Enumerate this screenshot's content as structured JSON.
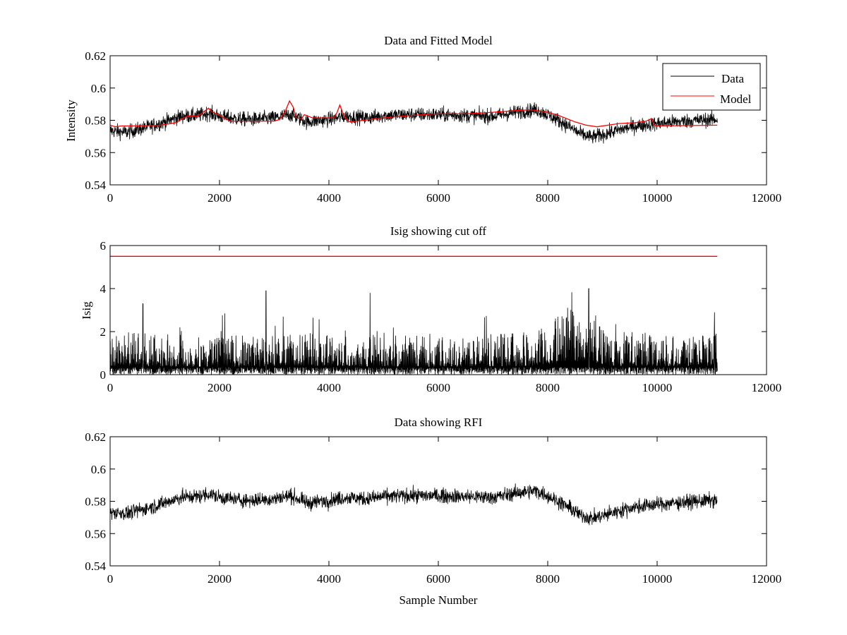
{
  "chart_data": [
    {
      "type": "line",
      "title": "Data and Fitted Model",
      "xlabel": "",
      "ylabel": "Intensity",
      "xlim": [
        0,
        12000
      ],
      "ylim": [
        0.54,
        0.62
      ],
      "xticks": [
        0,
        2000,
        4000,
        6000,
        8000,
        10000,
        12000
      ],
      "yticks": [
        0.54,
        0.56,
        0.58,
        0.6,
        0.62
      ],
      "ytick_labels": [
        "0.54",
        "0.56",
        "0.58",
        "0.6",
        "0.62"
      ],
      "legend": {
        "placement": "top-right",
        "entries": [
          "Data",
          "Model"
        ]
      },
      "series": [
        {
          "name": "Data",
          "color": "#000000",
          "style": "noisy",
          "noise_amp": 0.0055,
          "x": [
            0,
            300,
            700,
            1000,
            1300,
            1600,
            1800,
            2000,
            2300,
            2600,
            3000,
            3300,
            3600,
            4000,
            4300,
            4700,
            5000,
            5500,
            6000,
            6500,
            7000,
            7500,
            7800,
            8000,
            8300,
            8600,
            8800,
            9000,
            9300,
            9600,
            10000,
            10500,
            11000,
            11100
          ],
          "y": [
            0.5735,
            0.5725,
            0.576,
            0.579,
            0.5825,
            0.583,
            0.5845,
            0.5825,
            0.581,
            0.5805,
            0.5815,
            0.5835,
            0.579,
            0.5805,
            0.5825,
            0.5815,
            0.583,
            0.5835,
            0.5835,
            0.583,
            0.5825,
            0.5855,
            0.5865,
            0.5835,
            0.578,
            0.5715,
            0.5695,
            0.571,
            0.574,
            0.5765,
            0.578,
            0.5795,
            0.5805,
            0.5805
          ]
        },
        {
          "name": "Model",
          "color": "#ff0000",
          "style": "line",
          "x": [
            0,
            100,
            200,
            400,
            900,
            1200,
            1400,
            1600,
            1800,
            1850,
            2000,
            2100,
            2200,
            2400,
            2600,
            3000,
            3100,
            3200,
            3280,
            3350,
            3400,
            3500,
            3550,
            3700,
            4000,
            4100,
            4150,
            4200,
            4250,
            4300,
            4350,
            4400,
            5000,
            5500,
            6000,
            6500,
            7000,
            7500,
            7700,
            8000,
            8200,
            8500,
            8700,
            8900,
            9300,
            9600,
            9800,
            9900,
            9950,
            10000,
            11100
          ],
          "y": [
            0.577,
            0.576,
            0.5765,
            0.5765,
            0.5768,
            0.5785,
            0.5825,
            0.5825,
            0.5875,
            0.5855,
            0.583,
            0.581,
            0.5795,
            0.5795,
            0.5795,
            0.5795,
            0.5805,
            0.5855,
            0.592,
            0.588,
            0.5815,
            0.581,
            0.5835,
            0.5815,
            0.5815,
            0.5815,
            0.585,
            0.5895,
            0.585,
            0.5815,
            0.5795,
            0.579,
            0.5815,
            0.583,
            0.584,
            0.584,
            0.585,
            0.5862,
            0.5865,
            0.585,
            0.583,
            0.579,
            0.577,
            0.576,
            0.578,
            0.5785,
            0.5795,
            0.581,
            0.577,
            0.5765,
            0.577
          ]
        }
      ]
    },
    {
      "type": "line",
      "title": "Isig showing cut off",
      "xlabel": "",
      "ylabel": "Isig",
      "xlim": [
        0,
        12000
      ],
      "ylim": [
        0,
        6
      ],
      "xticks": [
        0,
        2000,
        4000,
        6000,
        8000,
        10000,
        12000
      ],
      "yticks": [
        0,
        2,
        4,
        6
      ],
      "ytick_labels": [
        "0",
        "2",
        "4",
        "6"
      ],
      "series": [
        {
          "name": "Isig",
          "color": "#000000",
          "style": "spiky",
          "x": [
            0,
            2000,
            4000,
            6000,
            7800,
            8400,
            8800,
            9200,
            10000,
            11100
          ],
          "y": [
            1.0,
            0.9,
            1.0,
            0.9,
            1.0,
            1.6,
            1.5,
            1.0,
            1.0,
            1.0
          ],
          "peaks": [
            {
              "x": 2850,
              "y": 3.9
            },
            {
              "x": 4750,
              "y": 3.8
            },
            {
              "x": 8750,
              "y": 4.0
            },
            {
              "x": 600,
              "y": 3.3
            },
            {
              "x": 11050,
              "y": 2.9
            }
          ]
        },
        {
          "name": "Cut off",
          "color": "#ff0000",
          "style": "line",
          "x": [
            0,
            11100
          ],
          "y": [
            5.5,
            5.5
          ]
        }
      ]
    },
    {
      "type": "line",
      "title": "Data showing RFI",
      "xlabel": "Sample Number",
      "ylabel": "",
      "xlim": [
        0,
        12000
      ],
      "ylim": [
        0.54,
        0.62
      ],
      "xticks": [
        0,
        2000,
        4000,
        6000,
        8000,
        10000,
        12000
      ],
      "yticks": [
        0.54,
        0.56,
        0.58,
        0.6,
        0.62
      ],
      "ytick_labels": [
        "0.54",
        "0.56",
        "0.58",
        "0.6",
        "0.62"
      ],
      "series": [
        {
          "name": "Data",
          "color": "#000000",
          "style": "noisy",
          "noise_amp": 0.0055,
          "x": [
            0,
            300,
            700,
            1000,
            1300,
            1600,
            1800,
            2000,
            2300,
            2600,
            3000,
            3300,
            3600,
            4000,
            4300,
            4700,
            5000,
            5500,
            6000,
            6500,
            7000,
            7500,
            7800,
            8000,
            8300,
            8600,
            8800,
            9000,
            9300,
            9600,
            10000,
            10500,
            11000,
            11100
          ],
          "y": [
            0.5735,
            0.5725,
            0.576,
            0.579,
            0.5825,
            0.583,
            0.5845,
            0.5825,
            0.581,
            0.5805,
            0.5815,
            0.5835,
            0.579,
            0.5805,
            0.5825,
            0.5815,
            0.583,
            0.5835,
            0.5835,
            0.583,
            0.5825,
            0.5855,
            0.5865,
            0.5835,
            0.578,
            0.5715,
            0.5695,
            0.571,
            0.574,
            0.5765,
            0.578,
            0.5795,
            0.5805,
            0.5805
          ]
        }
      ]
    }
  ]
}
